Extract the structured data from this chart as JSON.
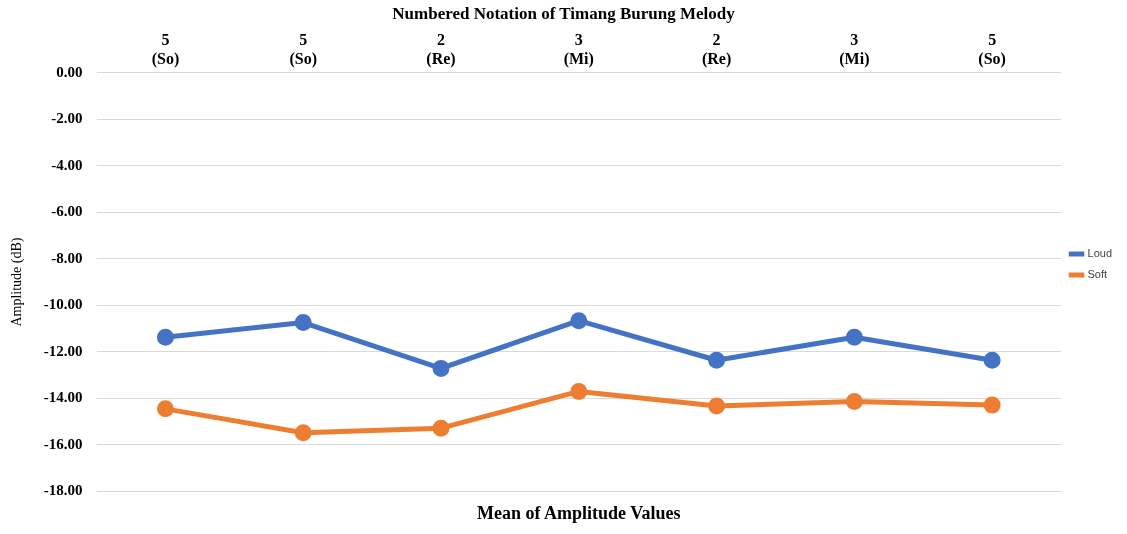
{
  "chart_data": {
    "type": "line",
    "title": "Numbered Notation of Timang Burung Melody",
    "xlabel": "Mean of Amplitude Values",
    "ylabel": "Amplitude (dB)",
    "categories": [
      "5\n(So)",
      "5\n(So)",
      "2\n(Re)",
      "3\n(Mi)",
      "2\n(Re)",
      "3\n(Mi)",
      "5\n(So)"
    ],
    "series": [
      {
        "name": "Loud",
        "color": "#4472c4",
        "values": [
          -11.37,
          -10.74,
          -12.71,
          -10.66,
          -12.36,
          -11.37,
          -12.36
        ]
      },
      {
        "name": "Soft",
        "color": "#ed7d31",
        "values": [
          -14.45,
          -15.48,
          -15.28,
          -13.7,
          -14.33,
          -14.13,
          -14.29
        ]
      }
    ],
    "ylim": [
      -18,
      0
    ],
    "yticks": [
      {
        "value": 0,
        "label": "0.00"
      },
      {
        "value": -2,
        "label": "-2.00"
      },
      {
        "value": -4,
        "label": "-4.00"
      },
      {
        "value": -6,
        "label": "-6.00"
      },
      {
        "value": -8,
        "label": "-8.00"
      },
      {
        "value": -10,
        "label": "-10.00"
      },
      {
        "value": -12,
        "label": "-12.00"
      },
      {
        "value": -14,
        "label": "-14.00"
      },
      {
        "value": -16,
        "label": "-16.00"
      },
      {
        "value": -18,
        "label": "-18.00"
      }
    ],
    "grid": "y",
    "legend": "right",
    "marker": "circle",
    "line_style": "solid"
  }
}
